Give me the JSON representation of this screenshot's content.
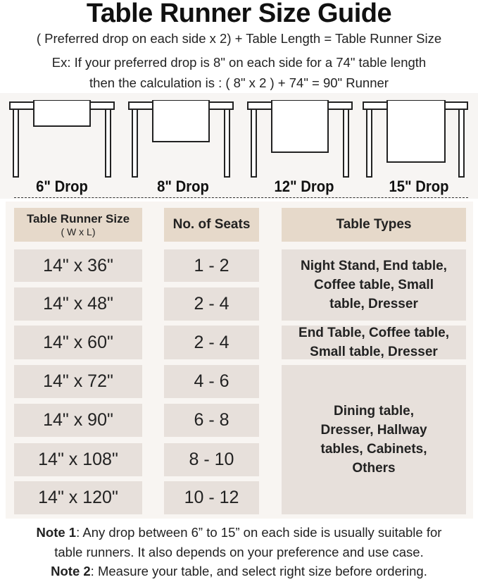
{
  "title": "Table Runner Size Guide",
  "formula": "( Preferred drop on each side x 2) + Table Length = Table Runner Size",
  "example_line1": "Ex: If your preferred drop is 8\" on each side for a 74\" table length",
  "example_line2": "then the calculation is : ( 8\" x 2 ) + 74\" = 90\" Runner",
  "drops": [
    {
      "label": "6\" Drop",
      "inches": 6
    },
    {
      "label": "8\" Drop",
      "inches": 8
    },
    {
      "label": "12\" Drop",
      "inches": 12
    },
    {
      "label": "15\" Drop",
      "inches": 15
    }
  ],
  "table": {
    "headers": {
      "size": "Table Runner Size",
      "size_sub": "( W x L)",
      "seats": "No. of Seats",
      "types": "Table Types"
    },
    "rows": [
      {
        "size": "14\" x 36\"",
        "seats": "1 - 2"
      },
      {
        "size": "14\" x 48\"",
        "seats": "2 - 4"
      },
      {
        "size": "14\" x 60\"",
        "seats": "2 - 4"
      },
      {
        "size": "14\" x 72\"",
        "seats": "4 - 6"
      },
      {
        "size": "14\" x 90\"",
        "seats": "6 - 8"
      },
      {
        "size": "14\" x 108\"",
        "seats": "8 - 10"
      },
      {
        "size": "14\" x 120\"",
        "seats": "10 - 12"
      }
    ],
    "types": [
      "Night Stand, End table, Coffee table, Small table, Dresser",
      "End Table, Coffee table, Small table, Dresser",
      "Dining table, Dresser, Hallway tables, Cabinets, Others"
    ]
  },
  "notes": [
    {
      "label": "Note 1",
      "text": ": Any drop between 6” to 15” on each side is usually suitable for",
      "text2": "table runners. It also depends on your preference and use case."
    },
    {
      "label": "Note 2",
      "text": ": Measure your table, and select right size before ordering."
    }
  ],
  "colors": {
    "header": "#e6d9ca",
    "cell": "#e7e0db",
    "panel": "#f8f5f2"
  }
}
